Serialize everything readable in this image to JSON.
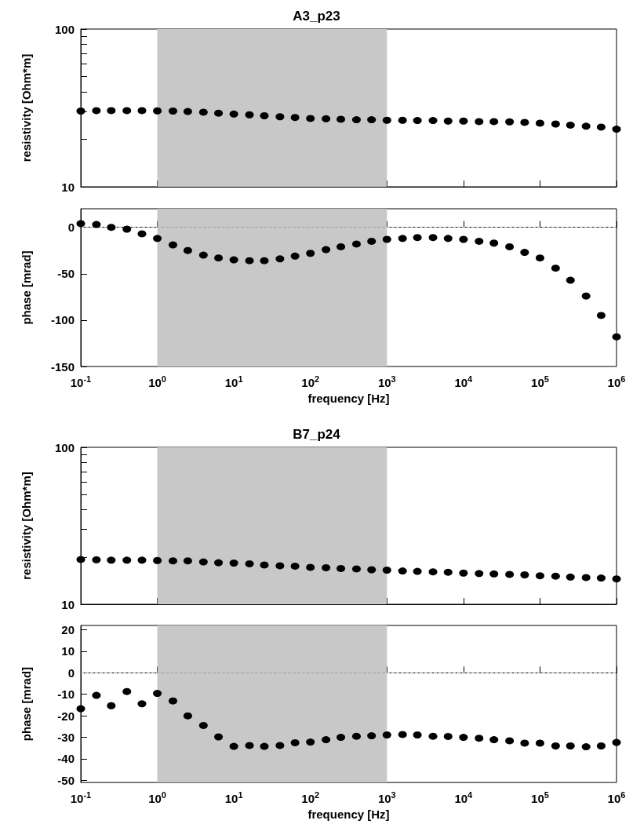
{
  "chart_data": [
    {
      "type": "scatter",
      "title": "A3_p23",
      "ylabel": "resistivity [Ohm*m]",
      "log": "xy",
      "tick_labels": "y",
      "marker": "circle",
      "color": "#000000",
      "x": [
        0.1,
        0.16,
        0.25,
        0.4,
        0.63,
        1,
        1.6,
        2.5,
        4,
        6.3,
        10,
        16,
        25,
        40,
        63,
        100,
        160,
        250,
        400,
        630,
        1000,
        1600,
        2500,
        4000,
        6300,
        10000,
        16000,
        25000,
        40000,
        63000,
        100000,
        160000,
        250000,
        400000,
        630000,
        1000000
      ],
      "values": [
        30.2,
        30.4,
        30.4,
        30.4,
        30.4,
        30.3,
        30.2,
        30,
        29.7,
        29.3,
        28.9,
        28.6,
        28.2,
        27.8,
        27.5,
        27.1,
        27,
        26.8,
        26.6,
        26.6,
        26.4,
        26.4,
        26.3,
        26.3,
        26.1,
        26.1,
        25.9,
        25.9,
        25.8,
        25.6,
        25.3,
        25,
        24.6,
        24.2,
        23.9,
        23.2
      ],
      "xlim": [
        0.1,
        1000000
      ],
      "xticks": [
        {
          "value": 0.1,
          "label": null
        },
        {
          "value": 1,
          "label": null
        },
        {
          "value": 10,
          "label": null
        },
        {
          "value": 100,
          "label": null
        },
        {
          "value": 1000,
          "label": null
        },
        {
          "value": 10000,
          "label": null
        },
        {
          "value": 100000,
          "label": null
        },
        {
          "value": 1000000,
          "label": null
        }
      ],
      "ylim": [
        10,
        100
      ],
      "yticks": [
        10,
        {
          "value": 20,
          "label": null
        },
        {
          "value": 30,
          "label": null
        },
        {
          "value": 40,
          "label": null
        },
        {
          "value": 50,
          "label": null
        },
        {
          "value": 60,
          "label": null
        },
        {
          "value": 70,
          "label": null
        },
        {
          "value": 80,
          "label": null
        },
        {
          "value": 90,
          "label": null
        },
        100
      ],
      "bands": [
        {
          "axis": "x",
          "from": 1,
          "to": 1000,
          "color": "#c8c8c8"
        }
      ]
    },
    {
      "type": "scatter",
      "xlabel": "frequency [Hz]",
      "ylabel": "phase [mrad]",
      "log": "x",
      "marker": "circle",
      "color": "#000000",
      "x": [
        0.1,
        0.16,
        0.25,
        0.4,
        0.63,
        1,
        1.6,
        2.5,
        4,
        6.3,
        10,
        16,
        25,
        40,
        63,
        100,
        160,
        250,
        400,
        630,
        1000,
        1600,
        2500,
        4000,
        6300,
        10000,
        16000,
        25000,
        40000,
        63000,
        100000,
        160000,
        250000,
        400000,
        630000,
        1000000
      ],
      "values": [
        4,
        3,
        0,
        -2,
        -7,
        -12,
        -19,
        -25,
        -30,
        -33,
        -35,
        -36,
        -36,
        -34,
        -31,
        -28,
        -24,
        -21,
        -18,
        -15,
        -13,
        -12,
        -11,
        -11,
        -12,
        -13,
        -15,
        -17,
        -21,
        -27,
        -33,
        -44,
        -57,
        -74,
        -95,
        -118
      ],
      "xlim": [
        0.1,
        1000000
      ],
      "xticks": [
        {
          "value": 0.1,
          "label": "10$^{-1}$"
        },
        {
          "value": 1,
          "label": "10$^{0}$"
        },
        {
          "value": 10,
          "label": "10$^{1}$"
        },
        {
          "value": 100,
          "label": "10$^{2}$"
        },
        {
          "value": 1000,
          "label": "10$^{3}$"
        },
        {
          "value": 10000,
          "label": "10$^{4}$"
        },
        {
          "value": 100000,
          "label": "10$^{5}$"
        },
        {
          "value": 1000000,
          "label": "10$^{6}$"
        }
      ],
      "ylim": [
        -150,
        20
      ],
      "yticks": [
        -150,
        -100,
        -50,
        0
      ],
      "bands": [
        {
          "axis": "x",
          "from": 1,
          "to": 1000,
          "color": "#c8c8c8"
        }
      ],
      "ref_lines": [
        {
          "axis": "y",
          "value": 0,
          "color": "#a0a0a0",
          "line_style": "dashed"
        }
      ]
    },
    {
      "type": "scatter",
      "title": "B7_p24",
      "ylabel": "resistivity [Ohm*m]",
      "log": "xy",
      "tick_labels": "y",
      "marker": "circle",
      "color": "#000000",
      "x": [
        0.1,
        0.16,
        0.25,
        0.4,
        0.63,
        1,
        1.6,
        2.5,
        4,
        6.3,
        10,
        16,
        25,
        40,
        63,
        100,
        160,
        250,
        400,
        630,
        1000,
        1600,
        2500,
        4000,
        6300,
        10000,
        16000,
        25000,
        40000,
        63000,
        100000,
        160000,
        250000,
        400000,
        630000,
        1000000
      ],
      "values": [
        19.3,
        19.2,
        19.1,
        19.1,
        19.1,
        19,
        18.9,
        18.9,
        18.6,
        18.4,
        18.3,
        18.1,
        17.8,
        17.6,
        17.5,
        17.2,
        17.1,
        16.9,
        16.8,
        16.6,
        16.5,
        16.3,
        16.2,
        16.1,
        16,
        15.8,
        15.7,
        15.6,
        15.5,
        15.4,
        15.2,
        15.1,
        14.9,
        14.8,
        14.7,
        14.5
      ],
      "xlim": [
        0.1,
        1000000
      ],
      "xticks": [
        {
          "value": 0.1,
          "label": null
        },
        {
          "value": 1,
          "label": null
        },
        {
          "value": 10,
          "label": null
        },
        {
          "value": 100,
          "label": null
        },
        {
          "value": 1000,
          "label": null
        },
        {
          "value": 10000,
          "label": null
        },
        {
          "value": 100000,
          "label": null
        },
        {
          "value": 1000000,
          "label": null
        }
      ],
      "ylim": [
        10,
        100
      ],
      "yticks": [
        10,
        {
          "value": 20,
          "label": null
        },
        {
          "value": 30,
          "label": null
        },
        {
          "value": 40,
          "label": null
        },
        {
          "value": 50,
          "label": null
        },
        {
          "value": 60,
          "label": null
        },
        {
          "value": 70,
          "label": null
        },
        {
          "value": 80,
          "label": null
        },
        {
          "value": 90,
          "label": null
        },
        100
      ],
      "bands": [
        {
          "axis": "x",
          "from": 1,
          "to": 1000,
          "color": "#c8c8c8"
        }
      ]
    },
    {
      "type": "scatter",
      "xlabel": "frequency [Hz]",
      "ylabel": "phase [mrad]",
      "log": "x",
      "marker": "circle",
      "color": "#000000",
      "x": [
        0.1,
        0.16,
        0.25,
        0.4,
        0.63,
        1,
        1.6,
        2.5,
        4,
        6.3,
        10,
        16,
        25,
        40,
        63,
        100,
        160,
        250,
        400,
        630,
        1000,
        1600,
        2500,
        4000,
        6300,
        10000,
        16000,
        25000,
        40000,
        63000,
        100000,
        160000,
        250000,
        400000,
        630000,
        1000000
      ],
      "values": [
        -16.7,
        -10.5,
        -15.3,
        -8.7,
        -14.4,
        -9.6,
        -13.1,
        -20,
        -24.5,
        -29.8,
        -34.2,
        -33.8,
        -34.2,
        -33.8,
        -32.5,
        -32.2,
        -31.1,
        -30,
        -29.5,
        -29.3,
        -28.9,
        -28.7,
        -28.9,
        -29.5,
        -29.6,
        -30,
        -30.4,
        -31.1,
        -31.6,
        -32.7,
        -32.7,
        -34,
        -34,
        -34.4,
        -34,
        -32.4
      ],
      "xlim": [
        0.1,
        1000000
      ],
      "xticks": [
        {
          "value": 0.1,
          "label": "10$^{-1}$"
        },
        {
          "value": 1,
          "label": "10$^{0}$"
        },
        {
          "value": 10,
          "label": "10$^{1}$"
        },
        {
          "value": 100,
          "label": "10$^{2}$"
        },
        {
          "value": 1000,
          "label": "10$^{3}$"
        },
        {
          "value": 10000,
          "label": "10$^{4}$"
        },
        {
          "value": 100000,
          "label": "10$^{5}$"
        },
        {
          "value": 1000000,
          "label": "10$^{6}$"
        }
      ],
      "ylim": [
        -51,
        22
      ],
      "yticks": [
        -50,
        -40,
        -30,
        -20,
        -10,
        0,
        10,
        20
      ],
      "bands": [
        {
          "axis": "x",
          "from": 1,
          "to": 1000,
          "color": "#c8c8c8"
        }
      ],
      "ref_lines": [
        {
          "axis": "y",
          "value": 0,
          "color": "#a0a0a0",
          "line_style": "dashed"
        }
      ]
    }
  ]
}
